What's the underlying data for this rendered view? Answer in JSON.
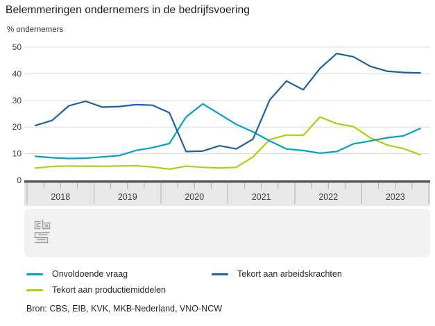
{
  "title": "Belemmeringen ondernemers in de bedrijfsvoering",
  "subtitle": "% ondernemers",
  "source": "Bron: CBS, EIB, KVK, MKB-Nederland, VNO-NCW",
  "logo_name": "cbs-logo",
  "chart_data": {
    "type": "line",
    "title": "Belemmeringen ondernemers in de bedrijfsvoering",
    "ylabel": "% ondernemers",
    "xlabel": "",
    "x_unit": "quarter",
    "years": [
      "2018",
      "2019",
      "2020",
      "2021",
      "2022",
      "2023"
    ],
    "quarters_per_year": 4,
    "ylim": [
      0,
      50
    ],
    "yticks": [
      0,
      10,
      20,
      30,
      40,
      50
    ],
    "grid": "horizontal",
    "legend_position": "bottom-left",
    "axis_band_color": "#e8e8e8",
    "axis_line_color": "#58595b",
    "gridline_color": "#dcdcdc",
    "panel_color": "#f1f1f1",
    "series": [
      {
        "name": "Onvoldoende vraag",
        "color": "#00a1cd",
        "values": [
          9.0,
          8.5,
          8.2,
          8.3,
          8.8,
          9.3,
          11.2,
          12.3,
          13.8,
          23.8,
          28.7,
          24.9,
          21.0,
          18.2,
          14.8,
          11.8,
          11.2,
          10.2,
          10.8,
          13.7,
          14.8,
          16.0,
          16.7,
          19.5
        ]
      },
      {
        "name": "Tekort aan arbeidskrachten",
        "color": "#1d5fa5",
        "values": [
          20.6,
          22.5,
          28.0,
          29.7,
          27.5,
          27.7,
          28.4,
          28.2,
          25.4,
          10.8,
          11.0,
          13.0,
          11.8,
          15.5,
          30.2,
          37.3,
          34.0,
          42.0,
          47.6,
          46.4,
          42.8,
          41.0,
          40.5,
          40.3
        ]
      },
      {
        "name": "Tekort aan productiemiddelen",
        "color": "#b4cc0b",
        "values": [
          4.6,
          5.2,
          5.4,
          5.3,
          5.3,
          5.4,
          5.5,
          5.0,
          4.2,
          5.3,
          4.9,
          4.6,
          4.9,
          8.8,
          15.3,
          17.0,
          16.9,
          23.8,
          21.3,
          20.2,
          16.0,
          13.3,
          11.9,
          9.6
        ]
      }
    ]
  }
}
